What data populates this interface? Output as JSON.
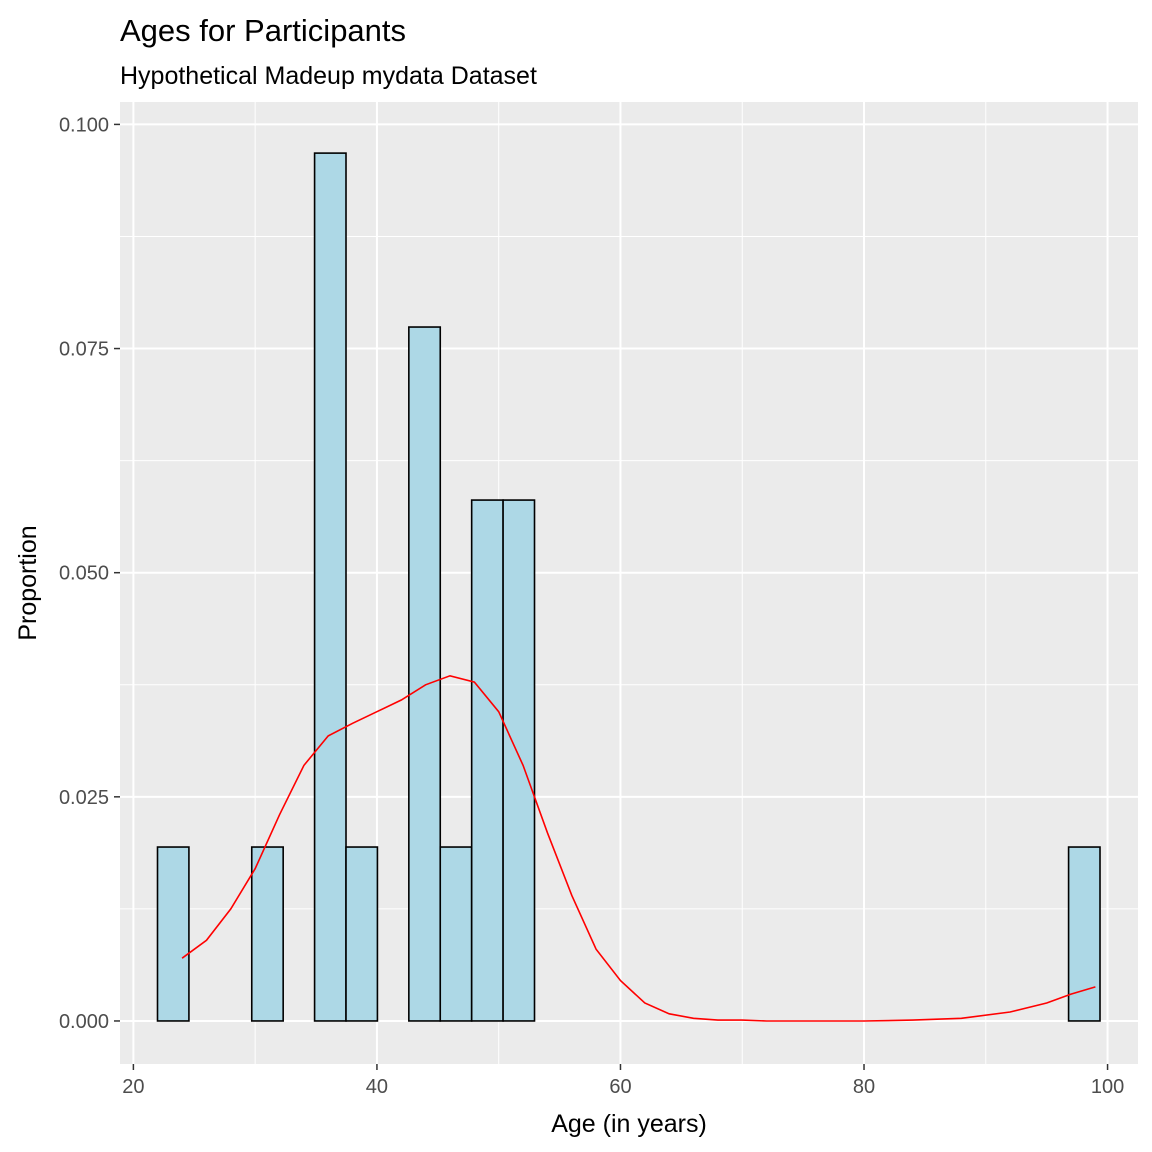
{
  "chart_data": {
    "type": "bar",
    "title": "Ages for Participants",
    "subtitle": "Hypothetical Madeup mydata Dataset",
    "xlabel": "Age (in years)",
    "ylabel": "Proportion",
    "xlim": [
      18.9,
      102.5
    ],
    "ylim": [
      -0.0048,
      0.1025
    ],
    "x_ticks": [
      20,
      40,
      60,
      80,
      100
    ],
    "x_tick_labels": [
      "20",
      "40",
      "60",
      "80",
      "100"
    ],
    "y_ticks": [
      0,
      0.025,
      0.05,
      0.075,
      0.1
    ],
    "y_tick_labels": [
      "0.000",
      "0.025",
      "0.050",
      "0.075",
      "0.100"
    ],
    "grid": true,
    "bin_width": 2.58,
    "bins": [
      {
        "x_start": 21.98,
        "x_end": 24.56,
        "value": 0.0194
      },
      {
        "x_start": 24.56,
        "x_end": 27.14,
        "value": 0
      },
      {
        "x_start": 27.14,
        "x_end": 29.72,
        "value": 0
      },
      {
        "x_start": 29.72,
        "x_end": 32.3,
        "value": 0.0194
      },
      {
        "x_start": 32.3,
        "x_end": 34.88,
        "value": 0
      },
      {
        "x_start": 34.88,
        "x_end": 37.46,
        "value": 0.0968
      },
      {
        "x_start": 37.46,
        "x_end": 40.04,
        "value": 0.0194
      },
      {
        "x_start": 40.04,
        "x_end": 42.62,
        "value": 0
      },
      {
        "x_start": 42.62,
        "x_end": 45.2,
        "value": 0.0774
      },
      {
        "x_start": 45.2,
        "x_end": 47.78,
        "value": 0.0194
      },
      {
        "x_start": 47.78,
        "x_end": 50.36,
        "value": 0.0581
      },
      {
        "x_start": 50.36,
        "x_end": 52.94,
        "value": 0.0581
      },
      {
        "x_start": 52.94,
        "x_end": 55.52,
        "value": 0
      },
      {
        "x_start": 55.52,
        "x_end": 58.1,
        "value": 0
      },
      {
        "x_start": 58.1,
        "x_end": 60.68,
        "value": 0
      },
      {
        "x_start": 60.68,
        "x_end": 63.26,
        "value": 0
      },
      {
        "x_start": 63.26,
        "x_end": 65.84,
        "value": 0
      },
      {
        "x_start": 65.84,
        "x_end": 68.42,
        "value": 0
      },
      {
        "x_start": 68.42,
        "x_end": 71.0,
        "value": 0
      },
      {
        "x_start": 71.0,
        "x_end": 73.58,
        "value": 0
      },
      {
        "x_start": 73.58,
        "x_end": 76.16,
        "value": 0
      },
      {
        "x_start": 76.16,
        "x_end": 78.74,
        "value": 0
      },
      {
        "x_start": 78.74,
        "x_end": 81.32,
        "value": 0
      },
      {
        "x_start": 81.32,
        "x_end": 83.9,
        "value": 0
      },
      {
        "x_start": 83.9,
        "x_end": 86.48,
        "value": 0
      },
      {
        "x_start": 86.48,
        "x_end": 89.06,
        "value": 0
      },
      {
        "x_start": 89.06,
        "x_end": 91.64,
        "value": 0
      },
      {
        "x_start": 91.64,
        "x_end": 94.22,
        "value": 0
      },
      {
        "x_start": 94.22,
        "x_end": 96.8,
        "value": 0
      },
      {
        "x_start": 96.8,
        "x_end": 99.38,
        "value": 0.0194
      }
    ],
    "density_curve": {
      "x": [
        24,
        26,
        28,
        30,
        32,
        34,
        36,
        38,
        40,
        42,
        44,
        46,
        48,
        50,
        52,
        54,
        56,
        58,
        60,
        62,
        64,
        66,
        68,
        70,
        72,
        76,
        80,
        84,
        88,
        92,
        95,
        97,
        99
      ],
      "y": [
        0.007,
        0.009,
        0.0125,
        0.017,
        0.023,
        0.0285,
        0.0318,
        0.0332,
        0.0345,
        0.0358,
        0.0375,
        0.0385,
        0.0378,
        0.0345,
        0.0285,
        0.021,
        0.014,
        0.008,
        0.0045,
        0.002,
        0.0008,
        0.0003,
        0.0001,
        0.0001,
        0.0,
        0.0,
        0.0,
        0.0001,
        0.0003,
        0.001,
        0.002,
        0.003,
        0.0038
      ]
    },
    "colors": {
      "bar_fill": "#add8e6",
      "bar_outline": "#000000",
      "density_line": "#ff0000",
      "panel_background": "#ebebeb",
      "grid": "#ffffff",
      "tick": "#333333"
    }
  }
}
